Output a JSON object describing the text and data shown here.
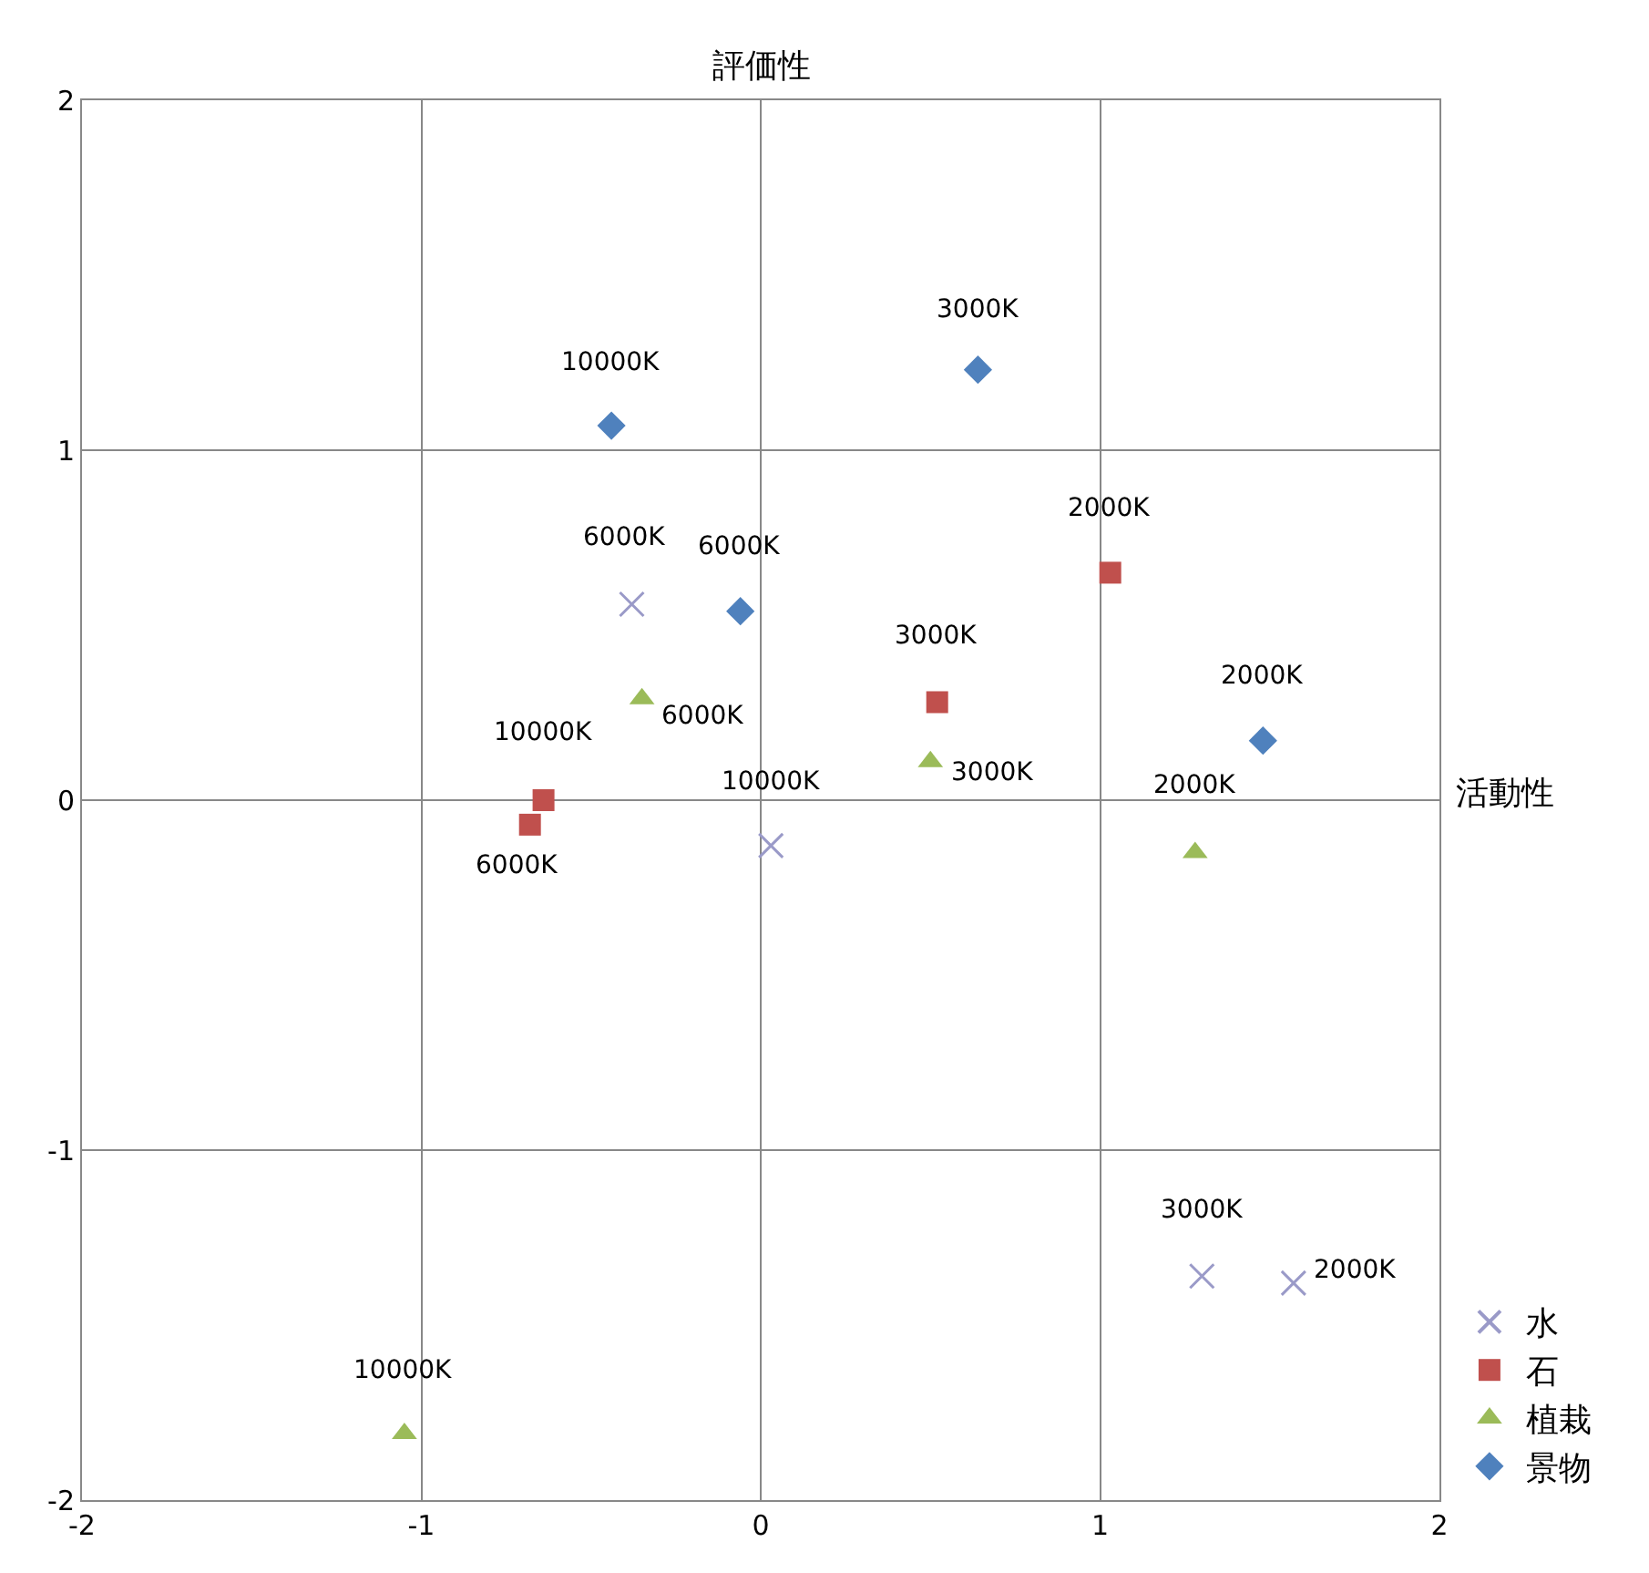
{
  "chart_data": {
    "type": "scatter",
    "xlabel": "活動性",
    "ylabel": "評価性",
    "xlim": [
      -2,
      2
    ],
    "ylim": [
      -2,
      2
    ],
    "xticks": [
      -2,
      -1,
      0,
      1,
      2
    ],
    "yticks": [
      -2,
      -1,
      0,
      1,
      2
    ],
    "grid": true,
    "legend": "bottom right",
    "series": [
      {
        "name": "水",
        "color": "#9a9ac8",
        "marker": "cross",
        "x": [
          -0.38,
          0.03,
          1.3,
          1.57
        ],
        "values": [
          0.56,
          -0.13,
          -1.36,
          -1.38
        ]
      },
      {
        "name": "石",
        "color": "#c0504d",
        "marker": "square",
        "x": [
          1.03,
          0.52,
          -0.64,
          -0.68
        ],
        "values": [
          0.65,
          0.28,
          0.0,
          -0.07
        ]
      },
      {
        "name": "植栽",
        "color": "#9bbb59",
        "marker": "triangle",
        "x": [
          -0.35,
          0.5,
          1.28,
          -1.05
        ],
        "values": [
          0.29,
          0.11,
          -0.15,
          -1.81
        ]
      },
      {
        "name": "景物",
        "color": "#4f81bd",
        "marker": "diamond",
        "x": [
          -0.44,
          0.64,
          -0.06,
          1.48
        ],
        "values": [
          1.07,
          1.23,
          0.54,
          0.17
        ]
      }
    ],
    "annotations": [
      {
        "text": "6000K",
        "x": -0.38,
        "y": 0.56
      },
      {
        "text": "10000K",
        "x": 0.03,
        "y": -0.13
      },
      {
        "text": "3000K",
        "x": 1.3,
        "y": -1.36
      },
      {
        "text": "2000K",
        "x": 1.57,
        "y": -1.38
      },
      {
        "text": "2000K",
        "x": 1.03,
        "y": 0.65
      },
      {
        "text": "3000K",
        "x": 0.52,
        "y": 0.28
      },
      {
        "text": "10000K",
        "x": -0.64,
        "y": 0.0
      },
      {
        "text": "6000K",
        "x": -0.68,
        "y": -0.07
      },
      {
        "text": "6000K",
        "x": -0.35,
        "y": 0.29
      },
      {
        "text": "3000K",
        "x": 0.5,
        "y": 0.11
      },
      {
        "text": "2000K",
        "x": 1.28,
        "y": -0.15
      },
      {
        "text": "10000K",
        "x": -1.05,
        "y": -1.81
      },
      {
        "text": "10000K",
        "x": -0.44,
        "y": 1.07
      },
      {
        "text": "3000K",
        "x": 0.64,
        "y": 1.23
      },
      {
        "text": "6000K",
        "x": -0.06,
        "y": 0.54
      },
      {
        "text": "2000K",
        "x": 1.48,
        "y": 0.17
      }
    ]
  }
}
